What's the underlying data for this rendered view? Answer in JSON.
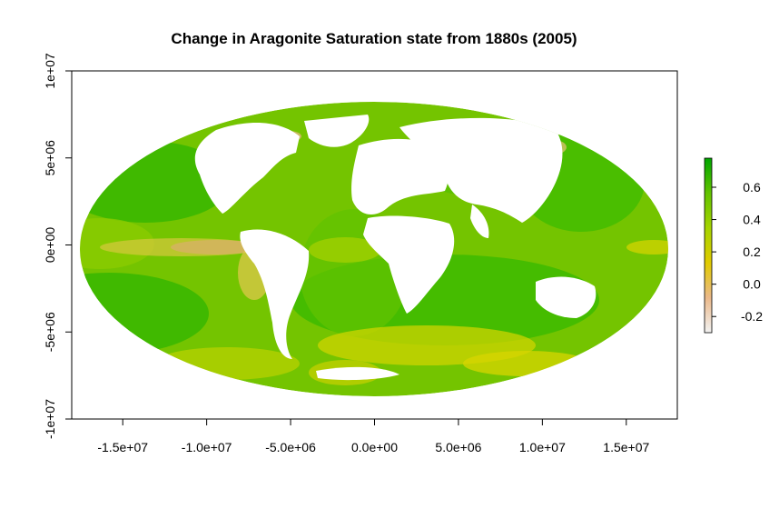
{
  "chart_data": {
    "type": "heatmap",
    "title": "Change in Aragonite Saturation state from 1880s (2005)",
    "xlabel": "",
    "ylabel": "",
    "projection": "mollweide",
    "xlim": [
      -18040095,
      18040095
    ],
    "ylim": [
      -10000000,
      10000000
    ],
    "x_ticks": [
      -15000000,
      -10000000,
      -5000000,
      0,
      5000000,
      10000000,
      15000000
    ],
    "x_tick_labels": [
      "-1.5e+07",
      "-1.0e+07",
      "-5.0e+06",
      "0.0e+00",
      "5.0e+06",
      "1.0e+07",
      "1.5e+07"
    ],
    "y_ticks": [
      -10000000,
      -5000000,
      0,
      5000000,
      10000000
    ],
    "y_tick_labels": [
      "-1e+07",
      "-5e+06",
      "0e+00",
      "5e+06",
      "1e+07"
    ],
    "legend": {
      "placement": "right",
      "range": [
        -0.3,
        0.78
      ],
      "ticks": [
        -0.2,
        0.0,
        0.2,
        0.4,
        0.6
      ],
      "tick_labels": [
        "-0.2",
        "0.0",
        "0.2",
        "0.4",
        "0.6"
      ],
      "colors": [
        "#f2f2f2",
        "#ebb98a",
        "#e1cb00",
        "#a6d400",
        "#62c300",
        "#00a600"
      ]
    },
    "land_color": "#ffffff",
    "grid": false
  }
}
